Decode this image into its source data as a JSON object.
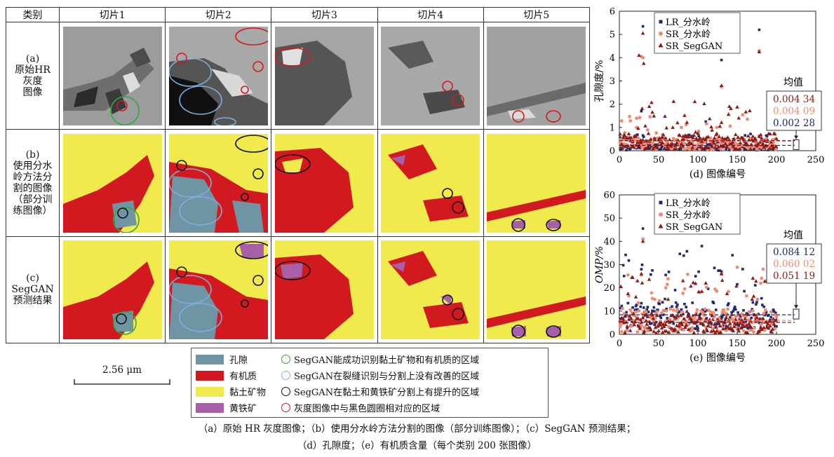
{
  "table": {
    "header": [
      "类别",
      "切片1",
      "切片2",
      "切片3",
      "切片4",
      "切片5"
    ],
    "rows": [
      {
        "label": [
          "(a)",
          "原始HR",
          "灰度",
          "图像"
        ]
      },
      {
        "label": [
          "(b)",
          "使用分水",
          "岭方法分",
          "割的图像",
          "（部分训",
          "练图像）"
        ]
      },
      {
        "label": [
          "(c)",
          "SegGAN",
          "预测结果"
        ]
      }
    ]
  },
  "scale_bar": "2.56 μm",
  "legend": {
    "swatches": [
      {
        "label": "孔隙",
        "color": "#6f94a3"
      },
      {
        "label": "有机质",
        "color": "#d31920"
      },
      {
        "label": "黏土矿物",
        "color": "#f0ea4d"
      },
      {
        "label": "黄铁矿",
        "color": "#a760a8"
      }
    ],
    "circles": [
      {
        "label": "SegGAN能成功识别黏土矿物和有机质的区域",
        "color": "#2eaa43"
      },
      {
        "label": "SegGAN在裂缝识别与分割上没有改善的区域",
        "color": "#7fb0e0"
      },
      {
        "label": "SegGAN在黏土和黄铁矿分割上有提升的区域",
        "color": "#111111"
      },
      {
        "label": "灰度图像中与黑色圆圈相对应的区域",
        "color": "#d31920"
      }
    ]
  },
  "chart_data": [
    {
      "type": "scatter",
      "panel": "(d) 图像编号",
      "xlabel": "(d) 图像编号",
      "ylabel": "孔隙度/%",
      "xlim": [
        0,
        250
      ],
      "ylim": [
        0,
        6
      ],
      "xticks": [
        "0",
        "50",
        "100",
        "150",
        "200",
        "250"
      ],
      "yticks": [
        "0",
        "1",
        "2",
        "3",
        "4",
        "5",
        "6"
      ],
      "series": [
        {
          "name": "LR_分水岭",
          "color": "#1a2a6c",
          "marker": "square",
          "mean": 0.00228,
          "highlights": [
            [
              30,
              5.35
            ],
            [
              130,
              3.9
            ],
            [
              178,
              5.2
            ],
            [
              28,
              1.7
            ],
            [
              110,
              1.25
            ]
          ]
        },
        {
          "name": "SR_分水岭",
          "color": "#f08a70",
          "marker": "circle",
          "mean": 0.00409,
          "highlights": [
            [
              28,
              4.05
            ],
            [
              30,
              4.0
            ],
            [
              178,
              4.3
            ],
            [
              130,
              2.75
            ],
            [
              22,
              1.0
            ]
          ]
        },
        {
          "name": "SR_SegGAN",
          "color": "#8b1a1a",
          "marker": "triangle",
          "mean": 0.00434,
          "highlights": [
            [
              30,
              5.05
            ],
            [
              25,
              4.1
            ],
            [
              31,
              3.75
            ],
            [
              178,
              4.25
            ],
            [
              130,
              2.8
            ],
            [
              38,
              1.9
            ],
            [
              196,
              2.0
            ],
            [
              140,
              1.9
            ]
          ]
        }
      ],
      "mean_box": {
        "title": "均值",
        "values": [
          "0.004 34",
          "0.004 09",
          "0.002 28"
        ]
      }
    },
    {
      "type": "scatter",
      "panel": "(e) 图像编号",
      "xlabel": "(e) 图像编号",
      "ylabel": "OMP/%",
      "xlim": [
        0,
        250
      ],
      "ylim": [
        0,
        60
      ],
      "xticks": [
        "0",
        "50",
        "100",
        "150",
        "200",
        "250"
      ],
      "yticks": [
        "0",
        "10",
        "20",
        "30",
        "40",
        "50",
        "60"
      ],
      "series": [
        {
          "name": "LR_分水岭",
          "color": "#1a2a6c",
          "marker": "square",
          "mean": 0.08412,
          "highlights": [
            [
              30,
              45.5
            ],
            [
              28,
              28
            ],
            [
              42,
              27.5
            ],
            [
              97,
              25
            ],
            [
              130,
              27
            ],
            [
              150,
              21.5
            ]
          ]
        },
        {
          "name": "SR_分水岭",
          "color": "#f08a70",
          "marker": "circle",
          "mean": 0.06002,
          "highlights": [
            [
              30,
              41
            ],
            [
              28,
              25.5
            ],
            [
              130,
              26
            ],
            [
              180,
              22
            ]
          ]
        },
        {
          "name": "SR_SegGAN",
          "color": "#8b1a1a",
          "marker": "triangle",
          "mean": 0.05119,
          "highlights": [
            [
              30,
              40
            ],
            [
              28,
              26
            ],
            [
              130,
              26
            ],
            [
              110,
              22
            ]
          ]
        }
      ],
      "mean_box": {
        "title": "均值",
        "values": [
          "0.084 12",
          "0.060 02",
          "0.051 19"
        ]
      }
    }
  ],
  "captions": {
    "line1": "（a）原始 HR 灰度图像；（b）使用分水岭方法分割的图像（部分训练图像）；（c）SegGAN 预测结果；",
    "line2": "（d）孔隙度；（e）有机质含量（每个类别 200 张图像）"
  }
}
